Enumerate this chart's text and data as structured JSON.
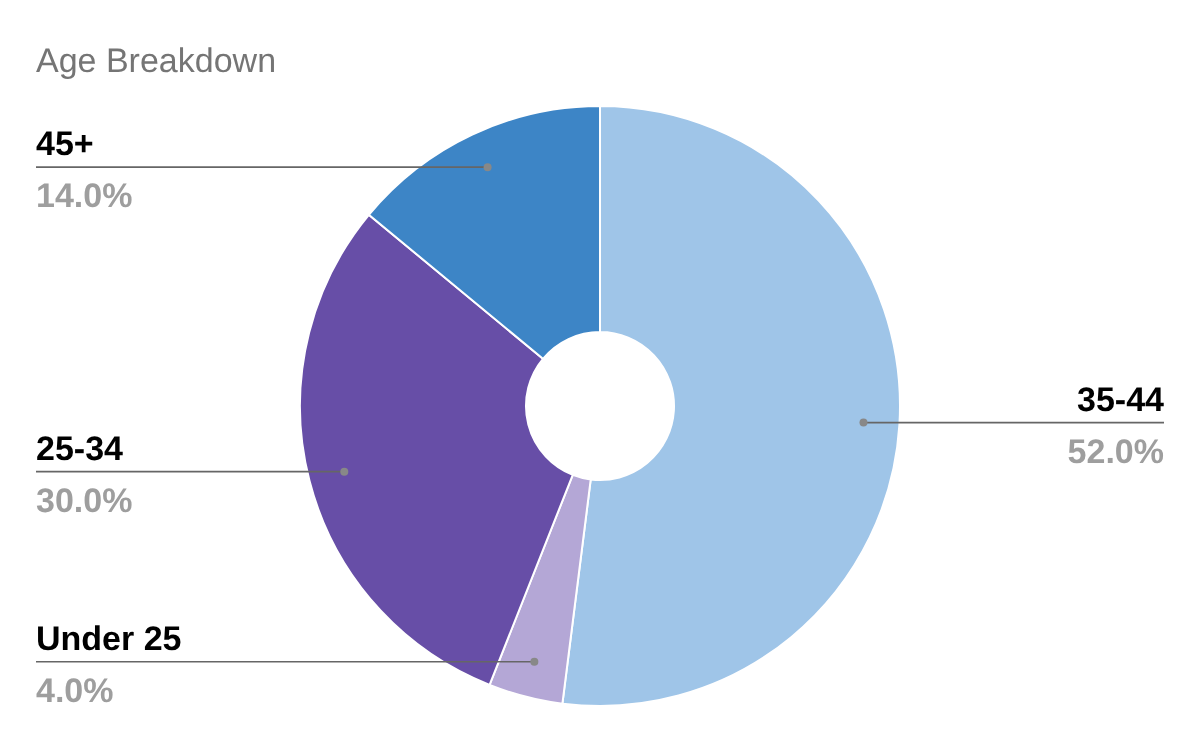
{
  "chart_data": {
    "type": "donut",
    "title": "Age Breakdown",
    "categories": [
      "35-44",
      "Under 25",
      "25-34",
      "45+"
    ],
    "values": [
      52,
      4,
      30,
      14
    ],
    "colors": [
      "#9fc5e8",
      "#b4a7d6",
      "#674ea7",
      "#3d85c6"
    ],
    "value_labels": [
      "52.0%",
      "4.0%",
      "30.0%",
      "14.0%"
    ]
  }
}
